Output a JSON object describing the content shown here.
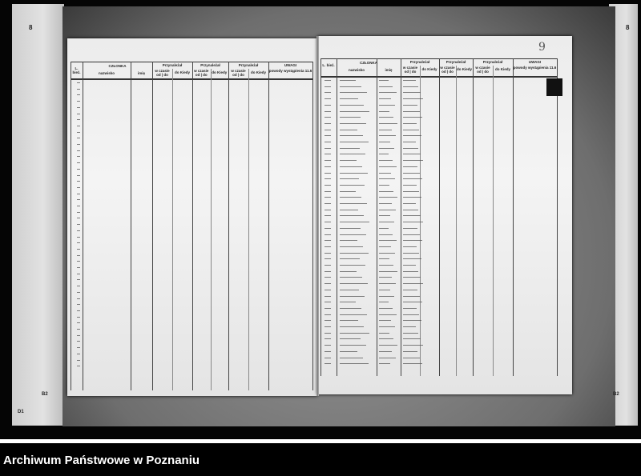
{
  "caption": "Archiwum Państwowe w Poznaniu",
  "markers": {
    "left_top": "8",
    "left_b2": "B2",
    "left_d1": "D1",
    "right_top": "8",
    "right_b2": "B2"
  },
  "page_number": "9",
  "ledger_header": {
    "lp": "L. bież.",
    "member": "CZŁONKA",
    "surname": "nazwisko",
    "first_name": "imię",
    "groups": [
      "Przynależał",
      "Przynależał",
      "Przynależał"
    ],
    "period": "w czasie od | do",
    "until": "do Kiedy",
    "remarks": "UWAGI",
    "remarks_sub": "powody wystąpienia 11.6"
  }
}
